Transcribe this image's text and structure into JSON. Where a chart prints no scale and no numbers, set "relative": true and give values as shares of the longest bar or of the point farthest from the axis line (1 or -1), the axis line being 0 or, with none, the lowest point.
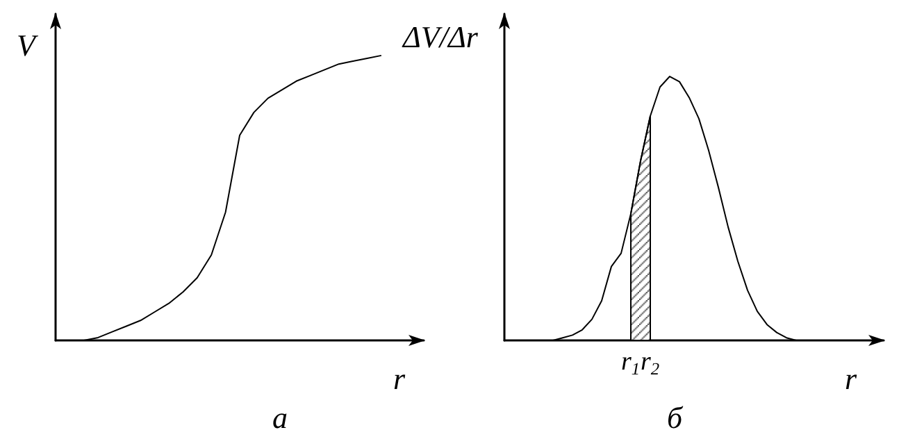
{
  "chart_data": [
    {
      "type": "line",
      "title": "а",
      "ylabel": "V",
      "xlabel": "r",
      "relative": true,
      "color": "#000000",
      "categories": [
        null,
        null,
        null,
        null,
        null,
        null,
        null,
        null,
        null,
        null,
        null,
        null,
        null,
        null,
        null,
        null,
        null,
        null,
        null,
        null,
        null,
        null,
        null,
        null,
        null,
        null,
        null
      ],
      "values": [
        null,
        null,
        0,
        0.01,
        0.03,
        0.05,
        0.07,
        0.1,
        0.13,
        0.17,
        0.22,
        0.3,
        0.45,
        0.72,
        0.8,
        0.85,
        0.88,
        0.91,
        0.93,
        0.95,
        0.97,
        0.98,
        0.99,
        1,
        null,
        null,
        null
      ]
    },
    {
      "type": "line",
      "title": "б",
      "ylabel": "ΔV/Δr",
      "xlabel": "r",
      "relative": true,
      "categories": [
        null,
        null,
        null,
        null,
        null,
        null,
        null,
        null,
        null,
        null,
        null,
        null,
        null,
        "r$_{1}$",
        null,
        "r$_{2}$",
        null,
        null,
        null,
        null,
        null,
        null,
        null,
        null,
        null,
        null,
        null,
        null,
        null,
        null,
        null,
        null,
        null,
        null,
        null,
        null,
        null,
        null,
        null,
        null
      ],
      "series": [
        {
          "color": "#000000",
          "values": [
            null,
            null,
            null,
            null,
            null,
            0,
            0.01,
            0.02,
            0.04,
            0.08,
            0.15,
            0.28,
            0.33,
            0.48,
            0.68,
            0.85,
            0.96,
            1,
            0.98,
            0.92,
            0.84,
            0.72,
            0.58,
            0.43,
            0.3,
            0.19,
            0.11,
            0.06,
            0.03,
            0.01,
            0,
            null,
            null,
            null,
            null,
            null,
            null,
            null,
            null,
            null
          ]
        },
        {
          "type": "area",
          "color": "#000000",
          "values": [
            null,
            null,
            null,
            null,
            null,
            null,
            null,
            null,
            null,
            null,
            null,
            null,
            null,
            0.48,
            0.68,
            0.85,
            null,
            null,
            null,
            null,
            null,
            null,
            null,
            null,
            null,
            null,
            null,
            null,
            null,
            null,
            null,
            null,
            null,
            null,
            null,
            null,
            null,
            null,
            null,
            null
          ]
        }
      ]
    }
  ]
}
